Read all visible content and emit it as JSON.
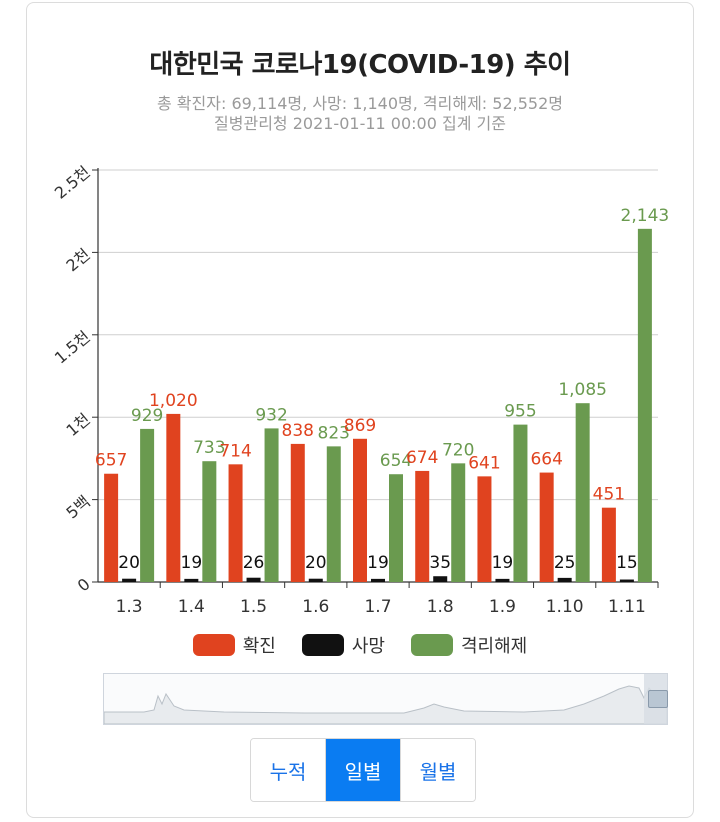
{
  "title": "대한민국 코로나19(COVID-19) 추이",
  "subtitle_1": "총 확진자: 69,114명, 사망: 1,140명, 격리해제: 52,552명",
  "subtitle_2": "질병관리청 2021-01-11 00:00 집계 기준",
  "colors": {
    "confirmed": "#e0431f",
    "deaths": "#111111",
    "released": "#6a9a4f"
  },
  "legend": [
    {
      "label": "확진",
      "color": "#e0431f"
    },
    {
      "label": "사망",
      "color": "#111111"
    },
    {
      "label": "격리해제",
      "color": "#6a9a4f"
    }
  ],
  "tabs": [
    {
      "label": "누적",
      "active": false
    },
    {
      "label": "일별",
      "active": true
    },
    {
      "label": "월별",
      "active": false
    }
  ],
  "chart_data": {
    "type": "bar",
    "categories": [
      "1.3",
      "1.4",
      "1.5",
      "1.6",
      "1.7",
      "1.8",
      "1.9",
      "1.10",
      "1.11"
    ],
    "series": [
      {
        "name": "확진",
        "values": [
          657,
          1020,
          714,
          838,
          869,
          674,
          641,
          664,
          451
        ],
        "labels": [
          "657",
          "1,020",
          "714",
          "838",
          "869",
          "674",
          "641",
          "664",
          "451"
        ]
      },
      {
        "name": "사망",
        "values": [
          20,
          19,
          26,
          20,
          19,
          35,
          19,
          25,
          15
        ],
        "labels": [
          "20",
          "19",
          "26",
          "20",
          "19",
          "35",
          "19",
          "25",
          "15"
        ]
      },
      {
        "name": "격리해제",
        "values": [
          929,
          733,
          932,
          823,
          654,
          720,
          955,
          1085,
          2143
        ],
        "labels": [
          "929",
          "733",
          "932",
          "823",
          "654",
          "720",
          "955",
          "1,085",
          "2,143"
        ]
      }
    ],
    "ylim": [
      0,
      2500
    ],
    "yticks": [
      0,
      500,
      1000,
      1500,
      2000,
      2500
    ],
    "ytick_labels": [
      "0",
      "5백",
      "1천",
      "1.5천",
      "2천",
      "2.5천"
    ],
    "grid": true,
    "legend_position": "bottom"
  }
}
